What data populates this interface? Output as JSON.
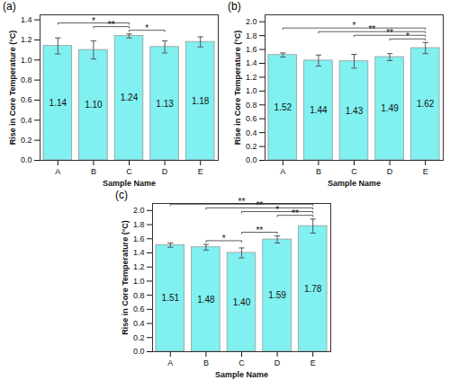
{
  "chart_data": [
    {
      "type": "bar",
      "title": "(a)",
      "x_label": "Sample Name",
      "y_label": "Rise in Core Temperature (°C)",
      "categories": [
        "A",
        "B",
        "C",
        "D",
        "E"
      ],
      "values": [
        1.14,
        1.1,
        1.24,
        1.13,
        1.18
      ],
      "value_labels": [
        "1.14",
        "1.10",
        "1.24",
        "1.13",
        "1.18"
      ],
      "errors": [
        0.08,
        0.09,
        0.02,
        0.06,
        0.05
      ],
      "significance": [
        {
          "from": "A",
          "to": "C",
          "label": "*"
        },
        {
          "from": "B",
          "to": "C",
          "label": "**"
        },
        {
          "from": "C",
          "to": "D",
          "label": "*"
        }
      ],
      "color": "#80f0f0",
      "data_labels": true,
      "ylim": [
        0,
        1.45
      ],
      "yticks": [
        {
          "value": 0,
          "label": "0.0"
        },
        0.2,
        0.4,
        0.6,
        0.8,
        {
          "value": 1,
          "label": "1.0"
        },
        1.2,
        1.4
      ]
    },
    {
      "type": "bar",
      "title": "(b)",
      "x_label": "Sample Name",
      "y_label": "Rise in Core Temperature (°C)",
      "categories": [
        "A",
        "B",
        "C",
        "D",
        "E"
      ],
      "values": [
        1.52,
        1.44,
        1.43,
        1.49,
        1.62
      ],
      "value_labels": [
        "1.52",
        "1.44",
        "1.43",
        "1.49",
        "1.62"
      ],
      "errors": [
        0.03,
        0.08,
        0.1,
        0.05,
        0.08
      ],
      "significance": [
        {
          "from": "A",
          "to": "E",
          "label": "*"
        },
        {
          "from": "B",
          "to": "E",
          "label": "**"
        },
        {
          "from": "C",
          "to": "E",
          "label": "**"
        },
        {
          "from": "D",
          "to": "E",
          "label": "*"
        }
      ],
      "color": "#80f0f0",
      "data_labels": true,
      "ylim": [
        0,
        2.1
      ],
      "yticks": [
        {
          "value": 0,
          "label": "0.0"
        },
        0.2,
        0.4,
        0.6,
        0.8,
        {
          "value": 1,
          "label": "1.0"
        },
        1.2,
        1.4,
        1.6,
        1.8,
        {
          "value": 2,
          "label": "2.0"
        }
      ]
    },
    {
      "type": "bar",
      "title": "(c)",
      "x_label": "Sample Name",
      "y_label": "Rise in Core Temperature (°C)",
      "categories": [
        "A",
        "B",
        "C",
        "D",
        "E"
      ],
      "values": [
        1.51,
        1.48,
        1.4,
        1.59,
        1.78
      ],
      "value_labels": [
        "1.51",
        "1.48",
        "1.40",
        "1.59",
        "1.78"
      ],
      "errors": [
        0.03,
        0.04,
        0.07,
        0.05,
        0.1
      ],
      "significance": [
        {
          "from": "A",
          "to": "E",
          "label": "**"
        },
        {
          "from": "B",
          "to": "E",
          "label": "**"
        },
        {
          "from": "C",
          "to": "E",
          "label": "*"
        },
        {
          "from": "D",
          "to": "E",
          "label": "**"
        },
        {
          "from": "C",
          "to": "D",
          "label": "**"
        },
        {
          "from": "B",
          "to": "C",
          "label": "*"
        }
      ],
      "color": "#80f0f0",
      "data_labels": true,
      "ylim": [
        0,
        2.1
      ],
      "yticks": [
        {
          "value": 0,
          "label": "0.0"
        },
        0.2,
        0.4,
        0.6,
        0.8,
        {
          "value": 1,
          "label": "1.0"
        },
        1.2,
        1.4,
        1.6,
        1.8,
        {
          "value": 2,
          "label": "2.0"
        }
      ]
    }
  ]
}
